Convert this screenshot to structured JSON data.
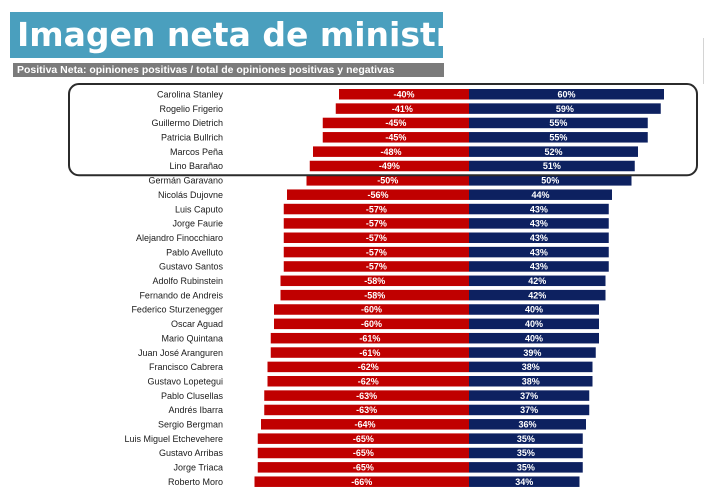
{
  "title": "Imagen neta de ministros",
  "subtitle": "Positiva Neta: opiniones positivas / total de opiniones positivas y negativas",
  "colors": {
    "title_bg": "#4a9fbe",
    "subtitle_bg": "#7b7b7b",
    "negative": "#c00000",
    "positive": "#0d2160",
    "highlight_border": "#2b2b2b"
  },
  "highlight": {
    "first_index": 0,
    "last_index": 5
  },
  "chart_data": {
    "type": "bar",
    "orientation": "horizontal-diverging",
    "title": "Imagen neta de ministros",
    "subtitle": "Positiva Neta: opiniones positivas / total de opiniones positivas y negativas",
    "categories": [
      "Carolina Stanley",
      "Rogelio Frigerio",
      "Guillermo Dietrich",
      "Patricia Bullrich",
      "Marcos Peña",
      "Lino Barañao",
      "Germán Garavano",
      "Nicolás Dujovne",
      "Luis Caputo",
      "Jorge Faurie",
      "Alejandro Finocchiaro",
      "Pablo Avelluto",
      "Gustavo Santos",
      "Adolfo Rubinstein",
      "Fernando de Andreis",
      "Federico Sturzenegger",
      "Oscar Aguad",
      "Mario Quintana",
      "Juan José Aranguren",
      "Francisco Cabrera",
      "Gustavo Lopetegui",
      "Pablo Clusellas",
      "Andrés Ibarra",
      "Sergio Bergman",
      "Luis Miguel Etchevehere",
      "Gustavo Arribas",
      "Jorge Triaca",
      "Roberto Moro"
    ],
    "series": [
      {
        "values": [
          -40,
          -41,
          -45,
          -45,
          -48,
          -49,
          -50,
          -56,
          -57,
          -57,
          -57,
          -57,
          -57,
          -58,
          -58,
          -60,
          -60,
          -61,
          -61,
          -62,
          -62,
          -63,
          -63,
          -64,
          -65,
          -65,
          -65,
          -66
        ],
        "labels": [
          "-40%",
          "-41%",
          "-45%",
          "-45%",
          "-48%",
          "-49%",
          "-50%",
          "-56%",
          "-57%",
          "-57%",
          "-57%",
          "-57%",
          "-57%",
          "-58%",
          "-58%",
          "-60%",
          "-60%",
          "-61%",
          "-61%",
          "-62%",
          "-62%",
          "-63%",
          "-63%",
          "-64%",
          "-65%",
          "-65%",
          "-65%",
          "-66%"
        ],
        "color": "#c00000"
      },
      {
        "values": [
          60,
          59,
          55,
          55,
          52,
          51,
          50,
          44,
          43,
          43,
          43,
          43,
          43,
          42,
          42,
          40,
          40,
          40,
          39,
          38,
          38,
          37,
          37,
          36,
          35,
          35,
          35,
          34
        ],
        "labels": [
          "60%",
          "59%",
          "55%",
          "55%",
          "52%",
          "51%",
          "50%",
          "44%",
          "43%",
          "43%",
          "43%",
          "43%",
          "43%",
          "42%",
          "42%",
          "40%",
          "40%",
          "40%",
          "39%",
          "38%",
          "38%",
          "37%",
          "37%",
          "36%",
          "35%",
          "35%",
          "35%",
          "34%"
        ],
        "color": "#0d2160"
      }
    ],
    "xlim": [
      -70,
      70
    ],
    "grid": false,
    "legend": "none"
  }
}
